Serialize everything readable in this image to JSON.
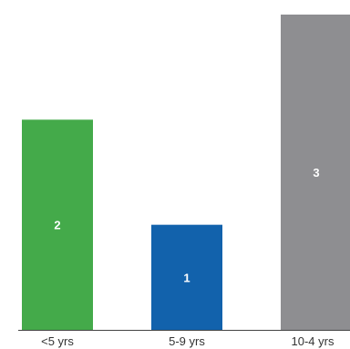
{
  "chart_data": {
    "type": "bar",
    "title": "",
    "xlabel": "",
    "ylabel": "",
    "categories": [
      "<5 yrs",
      "5-9 yrs",
      "10-4 yrs"
    ],
    "values": [
      2,
      1,
      3
    ],
    "data_labels": [
      "2",
      "1",
      "3"
    ],
    "colors": [
      "#44aa4a",
      "#1262ac",
      "#8e8e91"
    ],
    "ylim": [
      0,
      3
    ],
    "grid": false,
    "legend": "none"
  }
}
